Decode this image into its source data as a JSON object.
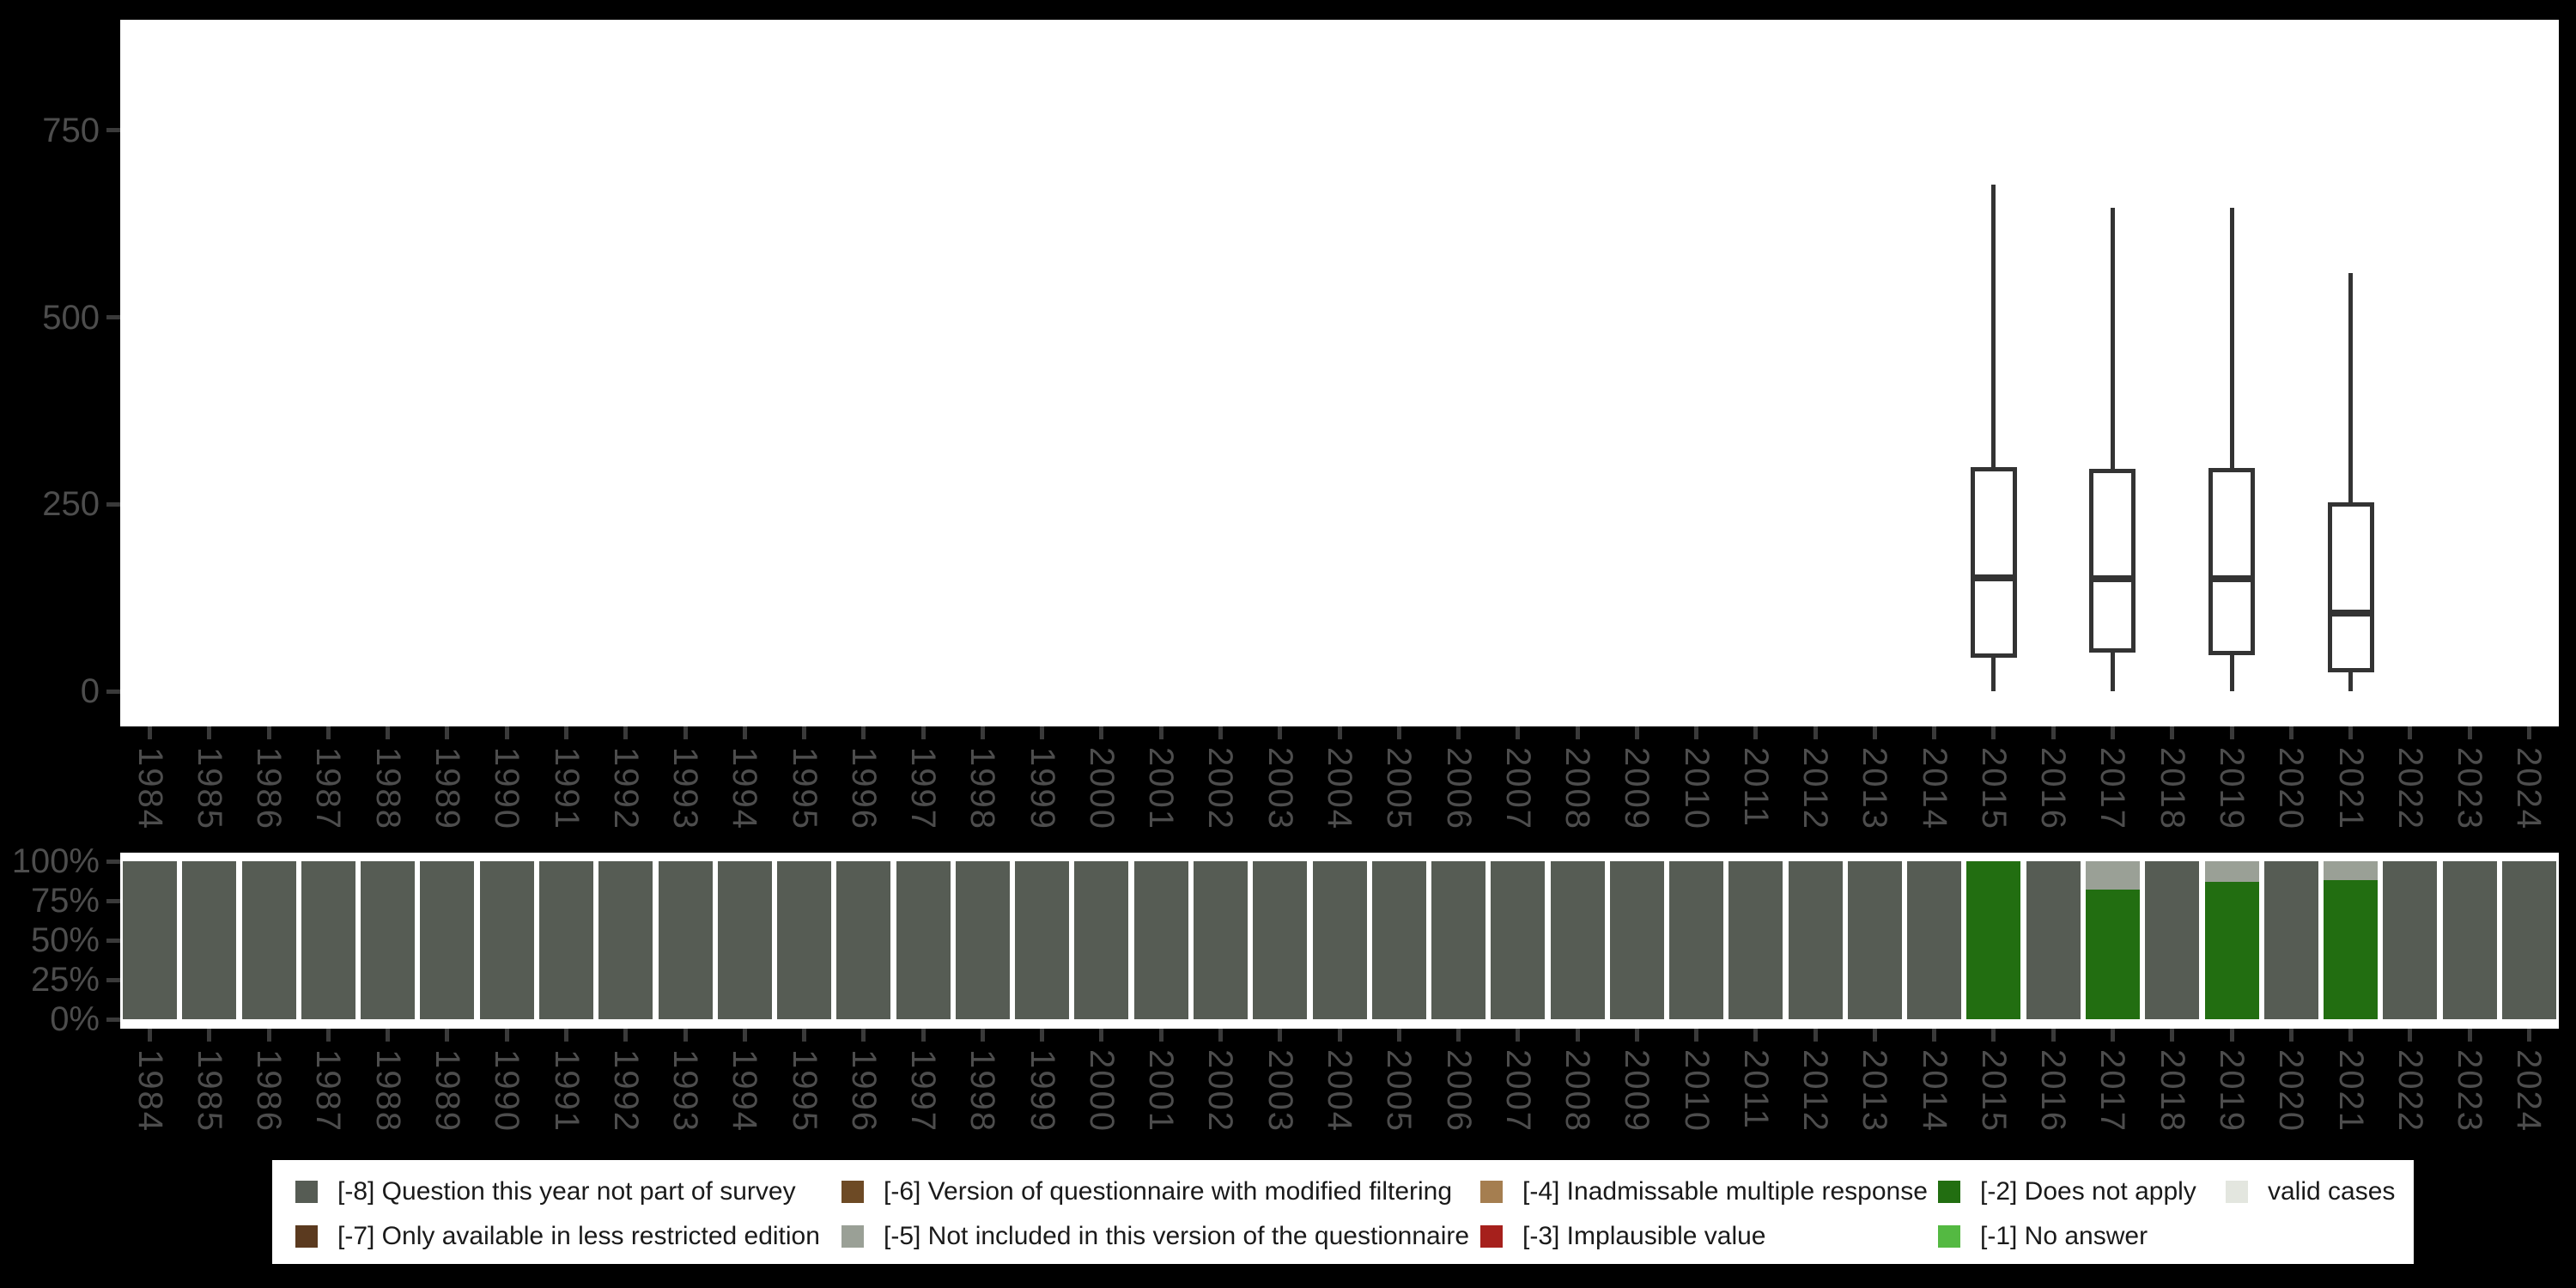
{
  "years": [
    "1984",
    "1985",
    "1986",
    "1987",
    "1988",
    "1989",
    "1990",
    "1991",
    "1992",
    "1993",
    "1994",
    "1995",
    "1996",
    "1997",
    "1998",
    "1999",
    "2000",
    "2001",
    "2002",
    "2003",
    "2004",
    "2005",
    "2006",
    "2007",
    "2008",
    "2009",
    "2010",
    "2011",
    "2012",
    "2013",
    "2014",
    "2015",
    "2016",
    "2017",
    "2018",
    "2019",
    "2020",
    "2021",
    "2022",
    "2023",
    "2024"
  ],
  "axes": {
    "top_y": [
      {
        "label": "750",
        "value": 750
      },
      {
        "label": "500",
        "value": 500
      },
      {
        "label": "250",
        "value": 250
      },
      {
        "label": "0",
        "value": 0
      }
    ],
    "bottom_y": [
      {
        "label": "100%",
        "value": 100
      },
      {
        "label": "75%",
        "value": 75
      },
      {
        "label": "50%",
        "value": 50
      },
      {
        "label": "25%",
        "value": 25
      },
      {
        "label": "0%",
        "value": 0
      }
    ]
  },
  "colors": {
    "-8": "#565c54",
    "-7": "#5b3a1f",
    "-6": "#6d4a25",
    "-5": "#9aa096",
    "-4": "#a57e50",
    "-3": "#a6201c",
    "-2": "#226e11",
    "-1": "#54b942",
    "valid": "#e3e6df",
    "background": "#000000",
    "panel": "#ffffff",
    "axis_text": "#4d4d4d",
    "tick": "#3a3a3a",
    "box_stroke": "#333333"
  },
  "chart_data": [
    {
      "type": "boxplot",
      "panel": "top",
      "title": "",
      "xlabel": "",
      "ylabel": "",
      "ylim": [
        -45,
        900
      ],
      "yticks": [
        0,
        250,
        500,
        750
      ],
      "grid": false,
      "x_categories_ref": "years",
      "boxes": [
        {
          "year": "2015",
          "whisker_low": 0,
          "q1": 45,
          "median": 152,
          "q3": 300,
          "whisker_high": 678
        },
        {
          "year": "2017",
          "whisker_low": 0,
          "q1": 52,
          "median": 150,
          "q3": 297,
          "whisker_high": 647
        },
        {
          "year": "2019",
          "whisker_low": 0,
          "q1": 48,
          "median": 150,
          "q3": 299,
          "whisker_high": 646
        },
        {
          "year": "2021",
          "whisker_low": 0,
          "q1": 25,
          "median": 104,
          "q3": 253,
          "whisker_high": 559
        }
      ]
    },
    {
      "type": "bar",
      "stacked": true,
      "panel": "bottom",
      "unit": "percent",
      "ylim": [
        0,
        100
      ],
      "yticks": [
        "0%",
        "25%",
        "50%",
        "75%",
        "100%"
      ],
      "grid": false,
      "x_categories_ref": "years",
      "bars": [
        {
          "year": "1984",
          "segments": [
            {
              "key": "-8",
              "pct": 100
            }
          ]
        },
        {
          "year": "1985",
          "segments": [
            {
              "key": "-8",
              "pct": 100
            }
          ]
        },
        {
          "year": "1986",
          "segments": [
            {
              "key": "-8",
              "pct": 100
            }
          ]
        },
        {
          "year": "1987",
          "segments": [
            {
              "key": "-8",
              "pct": 100
            }
          ]
        },
        {
          "year": "1988",
          "segments": [
            {
              "key": "-8",
              "pct": 100
            }
          ]
        },
        {
          "year": "1989",
          "segments": [
            {
              "key": "-8",
              "pct": 100
            }
          ]
        },
        {
          "year": "1990",
          "segments": [
            {
              "key": "-8",
              "pct": 100
            }
          ]
        },
        {
          "year": "1991",
          "segments": [
            {
              "key": "-8",
              "pct": 100
            }
          ]
        },
        {
          "year": "1992",
          "segments": [
            {
              "key": "-8",
              "pct": 100
            }
          ]
        },
        {
          "year": "1993",
          "segments": [
            {
              "key": "-8",
              "pct": 100
            }
          ]
        },
        {
          "year": "1994",
          "segments": [
            {
              "key": "-8",
              "pct": 100
            }
          ]
        },
        {
          "year": "1995",
          "segments": [
            {
              "key": "-8",
              "pct": 100
            }
          ]
        },
        {
          "year": "1996",
          "segments": [
            {
              "key": "-8",
              "pct": 100
            }
          ]
        },
        {
          "year": "1997",
          "segments": [
            {
              "key": "-8",
              "pct": 100
            }
          ]
        },
        {
          "year": "1998",
          "segments": [
            {
              "key": "-8",
              "pct": 100
            }
          ]
        },
        {
          "year": "1999",
          "segments": [
            {
              "key": "-8",
              "pct": 100
            }
          ]
        },
        {
          "year": "2000",
          "segments": [
            {
              "key": "-8",
              "pct": 100
            }
          ]
        },
        {
          "year": "2001",
          "segments": [
            {
              "key": "-8",
              "pct": 100
            }
          ]
        },
        {
          "year": "2002",
          "segments": [
            {
              "key": "-8",
              "pct": 100
            }
          ]
        },
        {
          "year": "2003",
          "segments": [
            {
              "key": "-8",
              "pct": 100
            }
          ]
        },
        {
          "year": "2004",
          "segments": [
            {
              "key": "-8",
              "pct": 100
            }
          ]
        },
        {
          "year": "2005",
          "segments": [
            {
              "key": "-8",
              "pct": 100
            }
          ]
        },
        {
          "year": "2006",
          "segments": [
            {
              "key": "-8",
              "pct": 100
            }
          ]
        },
        {
          "year": "2007",
          "segments": [
            {
              "key": "-8",
              "pct": 100
            }
          ]
        },
        {
          "year": "2008",
          "segments": [
            {
              "key": "-8",
              "pct": 100
            }
          ]
        },
        {
          "year": "2009",
          "segments": [
            {
              "key": "-8",
              "pct": 100
            }
          ]
        },
        {
          "year": "2010",
          "segments": [
            {
              "key": "-8",
              "pct": 100
            }
          ]
        },
        {
          "year": "2011",
          "segments": [
            {
              "key": "-8",
              "pct": 100
            }
          ]
        },
        {
          "year": "2012",
          "segments": [
            {
              "key": "-8",
              "pct": 100
            }
          ]
        },
        {
          "year": "2013",
          "segments": [
            {
              "key": "-8",
              "pct": 100
            }
          ]
        },
        {
          "year": "2014",
          "segments": [
            {
              "key": "-8",
              "pct": 100
            }
          ]
        },
        {
          "year": "2015",
          "segments": [
            {
              "key": "-2",
              "pct": 100
            }
          ]
        },
        {
          "year": "2016",
          "segments": [
            {
              "key": "-8",
              "pct": 100
            }
          ]
        },
        {
          "year": "2017",
          "segments": [
            {
              "key": "-2",
              "pct": 82
            },
            {
              "key": "-5",
              "pct": 18
            }
          ]
        },
        {
          "year": "2018",
          "segments": [
            {
              "key": "-8",
              "pct": 100
            }
          ]
        },
        {
          "year": "2019",
          "segments": [
            {
              "key": "-2",
              "pct": 87
            },
            {
              "key": "-5",
              "pct": 13
            }
          ]
        },
        {
          "year": "2020",
          "segments": [
            {
              "key": "-8",
              "pct": 100
            }
          ]
        },
        {
          "year": "2021",
          "segments": [
            {
              "key": "-2",
              "pct": 88
            },
            {
              "key": "-5",
              "pct": 12
            }
          ]
        },
        {
          "year": "2022",
          "segments": [
            {
              "key": "-8",
              "pct": 100
            }
          ]
        },
        {
          "year": "2023",
          "segments": [
            {
              "key": "-8",
              "pct": 100
            }
          ]
        },
        {
          "year": "2024",
          "segments": [
            {
              "key": "-8",
              "pct": 100
            }
          ]
        }
      ]
    }
  ],
  "legend": {
    "items": [
      {
        "key": "-8",
        "label": "[-8] Question this year not part of survey",
        "column": 1,
        "row": 1
      },
      {
        "key": "-7",
        "label": "[-7] Only available in less restricted edition",
        "column": 1,
        "row": 2
      },
      {
        "key": "-6",
        "label": "[-6] Version of questionnaire with modified filtering",
        "column": 2,
        "row": 1
      },
      {
        "key": "-5",
        "label": "[-5] Not included in this version of the questionnaire",
        "column": 2,
        "row": 2
      },
      {
        "key": "-4",
        "label": "[-4] Inadmissable multiple response",
        "column": 3,
        "row": 1
      },
      {
        "key": "-3",
        "label": "[-3] Implausible value",
        "column": 3,
        "row": 2
      },
      {
        "key": "-2",
        "label": "[-2] Does not apply",
        "column": 4,
        "row": 1
      },
      {
        "key": "-1",
        "label": "[-1] No answer",
        "column": 4,
        "row": 2
      },
      {
        "key": "valid",
        "label": "valid cases",
        "column": 5,
        "row": 1
      }
    ]
  }
}
